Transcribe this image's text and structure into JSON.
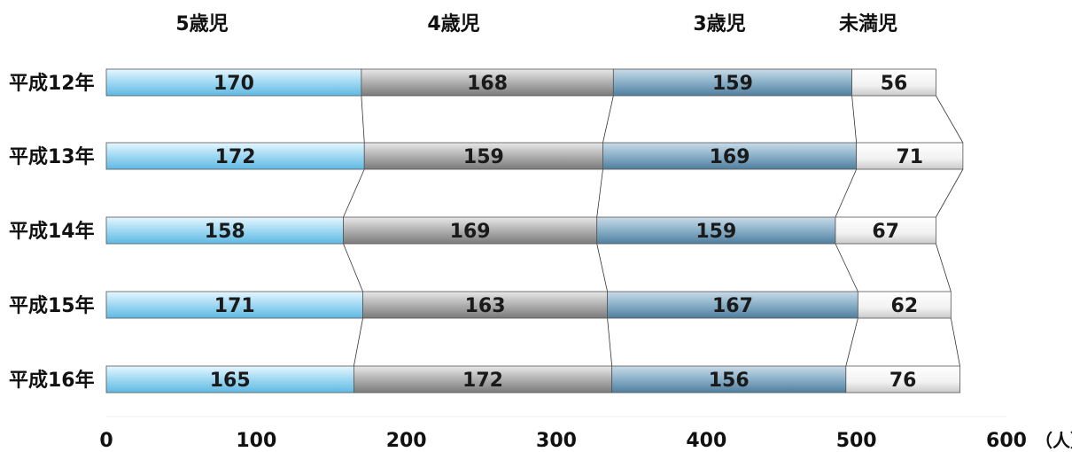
{
  "chart_data": {
    "type": "bar",
    "orientation": "horizontal",
    "stacked": true,
    "categories": [
      "平成12年",
      "平成13年",
      "平成14年",
      "平成15年",
      "平成16年"
    ],
    "series": [
      {
        "name": "5歳児",
        "values": [
          170,
          172,
          158,
          171,
          165
        ],
        "color": "#a8dcf0"
      },
      {
        "name": "4歳児",
        "values": [
          168,
          159,
          169,
          163,
          172
        ],
        "color": "#a8a8a8"
      },
      {
        "name": "3歳児",
        "values": [
          159,
          169,
          159,
          167,
          156
        ],
        "color": "#8ab0c8"
      },
      {
        "name": "未満児",
        "values": [
          56,
          71,
          67,
          62,
          76
        ],
        "color": "#ececec"
      }
    ],
    "xlim": [
      0,
      600
    ],
    "xticks": [
      0,
      100,
      200,
      300,
      400,
      500,
      600
    ],
    "unit": "（人）",
    "legend": "top",
    "grid": false,
    "connector_lines": true
  }
}
